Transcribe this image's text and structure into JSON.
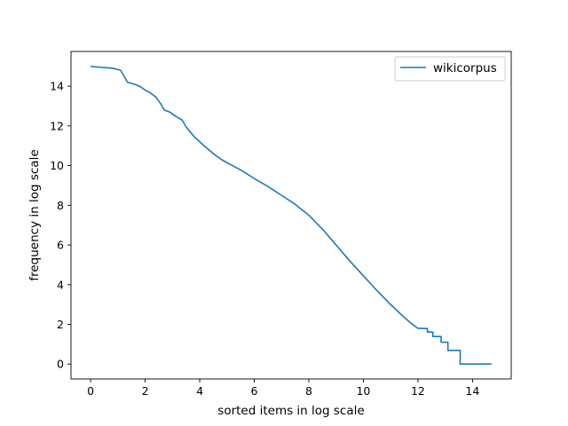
{
  "chart_data": {
    "type": "line",
    "title": "",
    "xlabel": "sorted items in log scale",
    "ylabel": "frequency in log scale",
    "xlim": [
      -0.72,
      15.42
    ],
    "ylim": [
      -0.75,
      15.75
    ],
    "x_ticks": [
      0,
      2,
      4,
      6,
      8,
      10,
      12,
      14
    ],
    "y_ticks": [
      0,
      2,
      4,
      6,
      8,
      10,
      12,
      14
    ],
    "grid": false,
    "legend_position": "top-right",
    "series_color": "#1f77b4",
    "series": [
      {
        "name": "wikicorpus",
        "x": [
          0,
          0.4,
          0.7,
          0.9,
          1.1,
          1.35,
          1.6,
          1.8,
          2.0,
          2.2,
          2.4,
          2.55,
          2.7,
          2.9,
          3.1,
          3.35,
          3.5,
          3.65,
          3.8,
          4.0,
          4.2,
          4.5,
          4.8,
          5.2,
          5.6,
          6.0,
          6.5,
          7.0,
          7.5,
          8.0,
          8.5,
          9.0,
          9.5,
          10.0,
          10.5,
          11.0,
          11.5,
          11.8,
          12.0,
          12.2,
          12.4,
          12.6,
          12.8,
          13.0,
          13.2,
          13.5,
          13.8,
          14.2,
          14.7
        ],
        "y": [
          15.0,
          14.95,
          14.92,
          14.88,
          14.8,
          14.2,
          14.1,
          14.0,
          13.8,
          13.65,
          13.45,
          13.15,
          12.8,
          12.7,
          12.5,
          12.3,
          11.95,
          11.7,
          11.45,
          11.2,
          10.95,
          10.6,
          10.3,
          10.0,
          9.7,
          9.35,
          8.95,
          8.5,
          8.05,
          7.5,
          6.8,
          6.0,
          5.2,
          4.45,
          3.7,
          3.0,
          2.35,
          2.0,
          1.8,
          1.6,
          1.4,
          1.3,
          1.1,
          1.0,
          0.7,
          0.0,
          0.0,
          0.0,
          0.0
        ],
        "steps": [
          {
            "x": 12.15,
            "y": 1.79
          },
          {
            "x": 12.35,
            "y": 1.61
          },
          {
            "x": 12.55,
            "y": 1.39
          },
          {
            "x": 12.85,
            "y": 1.1
          },
          {
            "x": 13.1,
            "y": 0.69
          },
          {
            "x": 13.55,
            "y": 0.0
          }
        ]
      }
    ]
  }
}
